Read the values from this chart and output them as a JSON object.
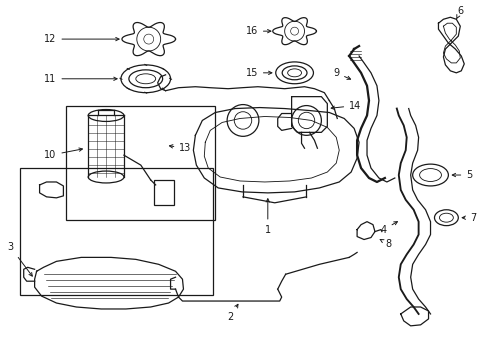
{
  "background_color": "#ffffff",
  "line_color": "#1a1a1a",
  "figsize": [
    4.85,
    3.57
  ],
  "dpi": 100,
  "ax_aspect": "auto"
}
